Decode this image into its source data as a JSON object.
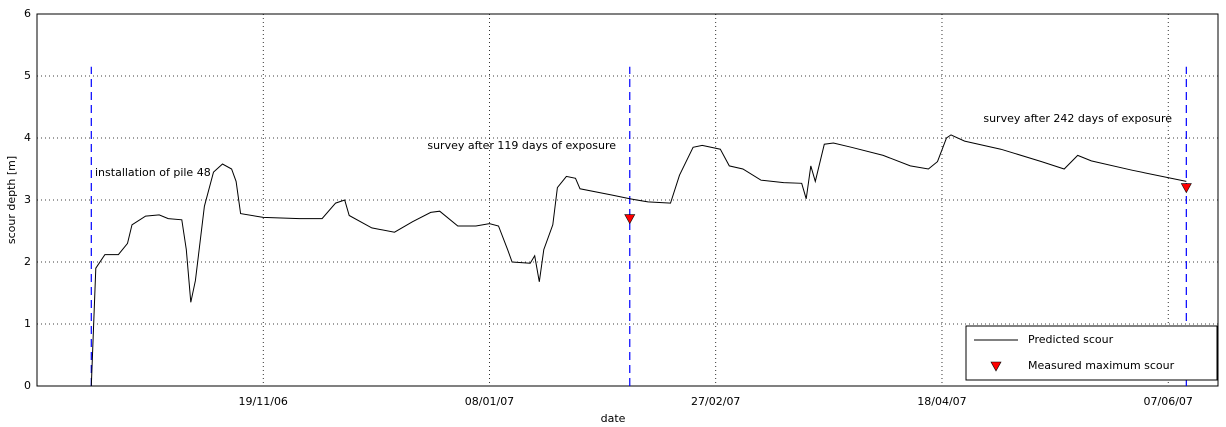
{
  "chart_data": {
    "type": "line",
    "xlabel": "date",
    "ylabel": "scour depth [m]",
    "xlim": [
      "2006-09-30",
      "2007-06-18"
    ],
    "ylim": [
      0,
      6
    ],
    "xticks": [
      {
        "value": "2006-11-19",
        "label": "19/11/06"
      },
      {
        "value": "2007-01-08",
        "label": "08/01/07"
      },
      {
        "value": "2007-02-27",
        "label": "27/02/07"
      },
      {
        "value": "2007-04-18",
        "label": "18/04/07"
      },
      {
        "value": "2007-06-07",
        "label": "07/06/07"
      }
    ],
    "yticks": [
      0,
      1,
      2,
      3,
      4,
      5,
      6
    ],
    "grid": true,
    "legend": "lower right",
    "series": [
      {
        "name": "Predicted scour",
        "color": "#000000",
        "style": "line",
        "x": [
          "2006-10-12",
          "2006-10-13",
          "2006-10-15",
          "2006-10-18",
          "2006-10-20",
          "2006-10-21",
          "2006-10-24",
          "2006-10-27",
          "2006-10-29",
          "2006-11-01",
          "2006-11-02",
          "2006-11-03",
          "2006-11-04",
          "2006-11-06",
          "2006-11-08",
          "2006-11-10",
          "2006-11-12",
          "2006-11-13",
          "2006-11-14",
          "2006-11-19",
          "2006-11-27",
          "2006-12-02",
          "2006-12-05",
          "2006-12-07",
          "2006-12-08",
          "2006-12-13",
          "2006-12-18",
          "2006-12-22",
          "2006-12-26",
          "2006-12-28",
          "2007-01-01",
          "2007-01-05",
          "2007-01-08",
          "2007-01-10",
          "2007-01-12",
          "2007-01-13",
          "2007-01-17",
          "2007-01-18",
          "2007-01-19",
          "2007-01-20",
          "2007-01-22",
          "2007-01-23",
          "2007-01-25",
          "2007-01-27",
          "2007-01-28",
          "2007-02-04",
          "2007-02-08",
          "2007-02-12",
          "2007-02-17",
          "2007-02-19",
          "2007-02-22",
          "2007-02-24",
          "2007-02-28",
          "2007-03-02",
          "2007-03-05",
          "2007-03-09",
          "2007-03-14",
          "2007-03-18",
          "2007-03-19",
          "2007-03-20",
          "2007-03-21",
          "2007-03-23",
          "2007-03-25",
          "2007-03-29",
          "2007-04-05",
          "2007-04-11",
          "2007-04-15",
          "2007-04-17",
          "2007-04-19",
          "2007-04-20",
          "2007-04-23",
          "2007-05-01",
          "2007-05-10",
          "2007-05-15",
          "2007-05-18",
          "2007-05-21",
          "2007-05-30",
          "2007-06-11"
        ],
        "values": [
          0,
          1.9,
          2.12,
          2.12,
          2.3,
          2.6,
          2.74,
          2.76,
          2.7,
          2.68,
          2.2,
          1.35,
          1.7,
          2.9,
          3.45,
          3.58,
          3.5,
          3.3,
          2.78,
          2.72,
          2.7,
          2.7,
          2.95,
          3.0,
          2.75,
          2.55,
          2.48,
          2.65,
          2.8,
          2.82,
          2.58,
          2.58,
          2.62,
          2.58,
          2.2,
          2.0,
          1.98,
          2.1,
          1.68,
          2.2,
          2.6,
          3.2,
          3.38,
          3.35,
          3.18,
          3.08,
          3.02,
          2.97,
          2.95,
          3.4,
          3.85,
          3.88,
          3.82,
          3.55,
          3.5,
          3.32,
          3.28,
          3.27,
          3.02,
          3.55,
          3.3,
          3.9,
          3.92,
          3.85,
          3.72,
          3.55,
          3.5,
          3.62,
          4.0,
          4.05,
          3.95,
          3.82,
          3.62,
          3.5,
          3.72,
          3.63,
          3.48,
          3.3
        ]
      },
      {
        "name": "Measured maximum scour",
        "color": "#ff0000",
        "style": "marker",
        "x": [
          "2007-02-08",
          "2007-06-11"
        ],
        "values": [
          2.7,
          3.2
        ]
      }
    ],
    "events": {
      "color": "#0000ff",
      "top": 5.15,
      "x": [
        "2006-10-12",
        "2007-02-08",
        "2007-06-11"
      ]
    },
    "annotations": [
      "installation of pile 48",
      "survey after 119 days of exposure",
      "survey after 242 days of exposure"
    ]
  }
}
